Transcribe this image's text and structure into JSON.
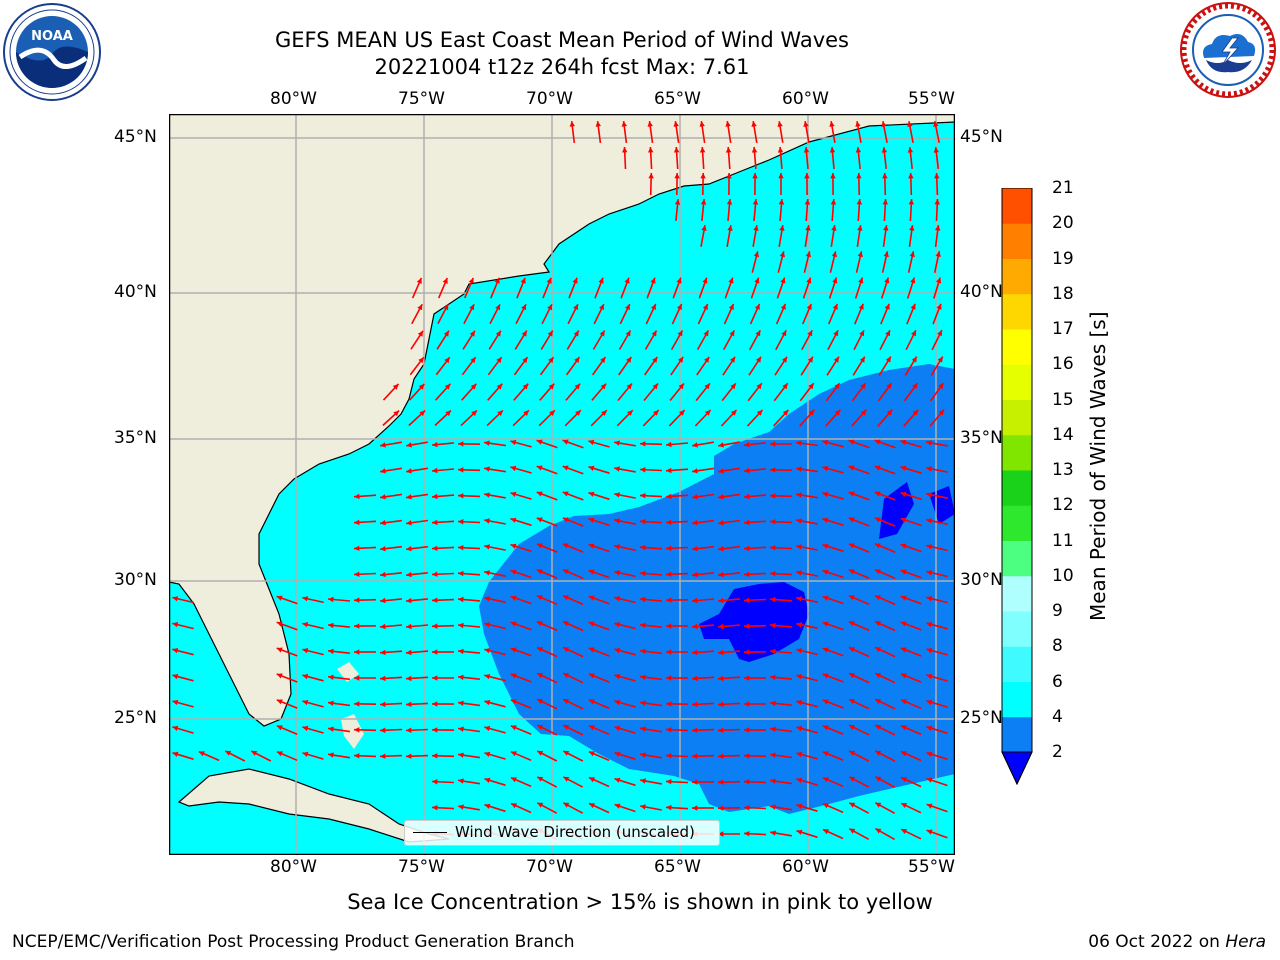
{
  "header": {
    "title_line1": "GEFS MEAN US East Coast Mean Period of Wind Waves",
    "title_line2": "20221004 t12z 264h fcst   Max: 7.61"
  },
  "logos": {
    "left": {
      "name": "noaa-logo",
      "text": "NOAA",
      "ring_text": "NATIONAL OCEANIC AND ATMOSPHERIC ADMINISTRATION · U.S. DEPARTMENT OF COMMERCE"
    },
    "right": {
      "name": "nws-logo",
      "ring_text": "NATIONAL WEATHER SERVICE"
    }
  },
  "map": {
    "lon_ticks": [
      "80°W",
      "75°W",
      "70°W",
      "65°W",
      "60°W",
      "55°W"
    ],
    "lat_ticks": [
      "45°N",
      "40°N",
      "35°N",
      "30°N",
      "25°N"
    ],
    "colors": {
      "land": "#efeddb",
      "ocean_2_4": "#0c7ff5",
      "ocean_4_6": "#00ffff",
      "ocean_lt2": "#0000ff",
      "gridline": "#b0b0b0",
      "arrow": "#ff0000"
    },
    "legend_label": "Wind Wave Direction (unscaled)"
  },
  "colorbar": {
    "title": "Mean Period of Wind Waves [s]",
    "levels": [
      "2",
      "4",
      "6",
      "8",
      "9",
      "10",
      "11",
      "12",
      "13",
      "14",
      "15",
      "16",
      "17",
      "18",
      "19",
      "20",
      "21"
    ],
    "colors": [
      "#0c7ff5",
      "#00ffff",
      "#3ffaff",
      "#80ffff",
      "#b0ffff",
      "#4cff80",
      "#2ee82e",
      "#19d219",
      "#80e600",
      "#c6f000",
      "#e6ff00",
      "#ffff00",
      "#ffd700",
      "#ffaa00",
      "#ff7f00",
      "#ff5000",
      "#ff2000",
      "#ff0000"
    ],
    "extend_min_color": "#0000ff"
  },
  "notes": {
    "sea_ice": "Sea Ice Concentration > 15% is shown in pink to yellow",
    "credit": "NCEP/EMC/Verification Post Processing Product Generation Branch",
    "date": "06 Oct 2022 on",
    "machine": "Hera"
  }
}
